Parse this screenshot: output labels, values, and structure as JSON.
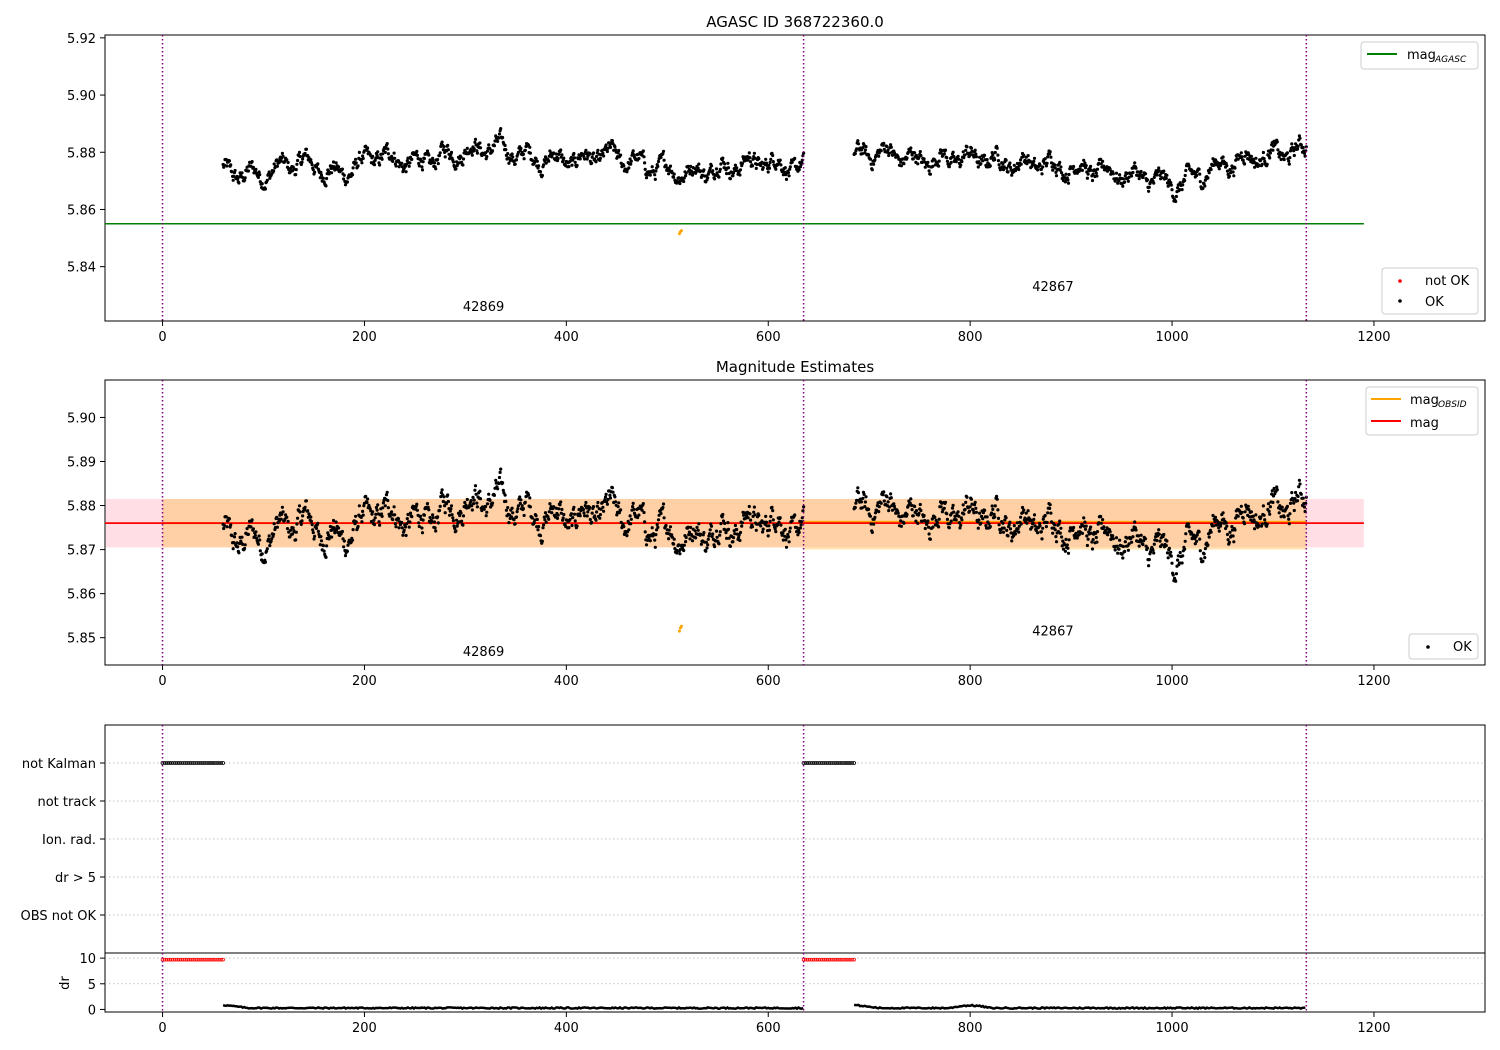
{
  "figure": {
    "top_title": "AGASC ID 368722360.0",
    "mid_title": "Magnitude Estimates"
  },
  "chart_data": [
    {
      "type": "scatter",
      "title": "AGASC ID 368722360.0",
      "xlim": [
        -57,
        1310
      ],
      "ylim": [
        5.821,
        5.921
      ],
      "xticks": [
        0,
        200,
        400,
        600,
        800,
        1000,
        1200
      ],
      "yticks": [
        5.84,
        5.86,
        5.88,
        5.9,
        5.92
      ],
      "ytick_labels": [
        "5.84",
        "5.86",
        "5.88",
        "5.90",
        "5.92"
      ],
      "obsid_boundaries": [
        0,
        635,
        1133
      ],
      "obsid_labels": [
        {
          "text": "42869",
          "x": 318,
          "y": 5.8245
        },
        {
          "text": "42867",
          "x": 882,
          "y": 5.8315
        }
      ],
      "mag_agasc": {
        "value": 5.855,
        "x": [
          -57,
          1190
        ]
      },
      "ok_segments": [
        {
          "x0": 60,
          "x1": 635,
          "base": [
            5.873,
            5.872,
            5.877,
            5.872,
            5.879,
            5.876,
            5.88,
            5.882,
            5.878,
            5.877,
            5.879,
            5.875,
            5.873,
            5.875,
            5.877,
            5.874
          ]
        },
        {
          "x0": 685,
          "x1": 1133,
          "base": [
            5.879,
            5.88,
            5.877,
            5.878,
            5.878,
            5.876,
            5.876,
            5.874,
            5.873,
            5.871,
            5.868,
            5.874,
            5.878,
            5.879,
            5.881
          ]
        }
      ],
      "not_ok_points": [
        {
          "x": 512,
          "y": 5.8515
        },
        {
          "x": 513,
          "y": 5.8522
        },
        {
          "x": 514,
          "y": 5.8526
        }
      ],
      "legend_upper": [
        "mag",
        "AGASC"
      ],
      "legend_lower": [
        "not OK",
        "OK"
      ]
    },
    {
      "type": "scatter",
      "title": "Magnitude Estimates",
      "xlim": [
        -57,
        1310
      ],
      "ylim": [
        5.8438,
        5.9085
      ],
      "xticks": [
        0,
        200,
        400,
        600,
        800,
        1000,
        1200
      ],
      "yticks": [
        5.85,
        5.86,
        5.87,
        5.88,
        5.89,
        5.9
      ],
      "ytick_labels": [
        "5.85",
        "5.86",
        "5.87",
        "5.88",
        "5.89",
        "5.90"
      ],
      "obsid_labels": [
        {
          "text": "42869",
          "x": 318,
          "y": 5.8458
        },
        {
          "text": "42867",
          "x": 882,
          "y": 5.8505
        }
      ],
      "mag": 5.876,
      "mag_band": [
        5.8705,
        5.8815
      ],
      "mag_obsid": [
        {
          "x0": 0,
          "x1": 635,
          "value": 5.876,
          "band": [
            5.8705,
            5.8815
          ]
        },
        {
          "x0": 635,
          "x1": 1133,
          "value": 5.8763,
          "band": [
            5.87,
            5.8815
          ]
        }
      ],
      "legend_upper": [
        "mag",
        "OBSID",
        "mag"
      ],
      "legend_lower": [
        "OK"
      ]
    },
    {
      "type": "scatter",
      "title": "",
      "ylabels": [
        "not Kalman",
        "not track",
        "Ion. rad.",
        "dr > 5",
        "OBS not OK"
      ],
      "not_kalman_ranges": [
        [
          0,
          60
        ],
        [
          635,
          685
        ]
      ]
    },
    {
      "type": "line",
      "title": "",
      "ylabel": "dr",
      "ylim": [
        -0.5,
        11
      ],
      "yticks": [
        0,
        5,
        10
      ],
      "ytick_labels": [
        "0",
        "5",
        "10"
      ],
      "xticks": [
        0,
        200,
        400,
        600,
        800,
        1000,
        1200
      ],
      "xtick_labels": [
        "0",
        "200",
        "400",
        "600",
        "800",
        "1000",
        "1200"
      ],
      "high_dr": {
        "value": 9.7,
        "ranges": [
          [
            0,
            60
          ],
          [
            635,
            685
          ]
        ]
      },
      "low_dr": {
        "value": 0.15,
        "ranges": [
          [
            60,
            635
          ],
          [
            685,
            1133
          ]
        ]
      }
    }
  ]
}
